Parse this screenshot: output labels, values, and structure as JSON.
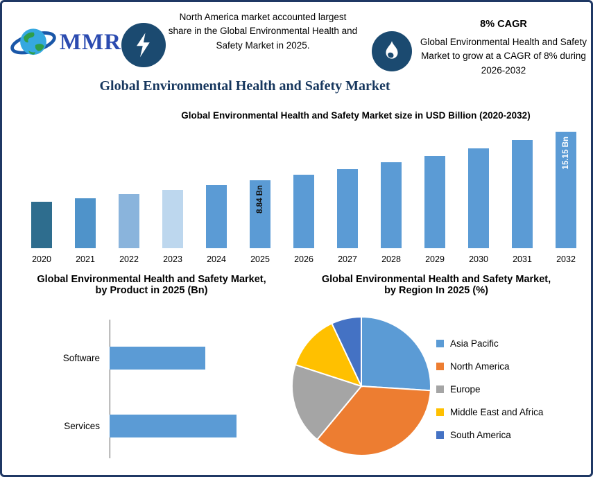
{
  "header": {
    "logo_text": "MMR",
    "highlight_note": "North America market accounted largest share in the Global Environmental Health and Safety Market in 2025.",
    "cagr_heading": "8% CAGR",
    "cagr_note": "Global Environmental Health and Safety Market to grow at a CAGR of 8% during 2026-2032",
    "title": "Global Environmental Health and Safety Market"
  },
  "colors": {
    "border": "#1f3864",
    "badge_circle": "#1b4a70",
    "title_text": "#17375e",
    "bar_primary": "#5b9bd5"
  },
  "chart_data": [
    {
      "type": "bar",
      "title": "Global Environmental Health and Safety Market size in USD Billion (2020-2032)",
      "categories": [
        "2020",
        "2021",
        "2022",
        "2023",
        "2024",
        "2025",
        "2026",
        "2027",
        "2028",
        "2029",
        "2030",
        "2031",
        "2032"
      ],
      "values": [
        6.02,
        6.5,
        7.02,
        7.58,
        8.19,
        8.84,
        9.55,
        10.31,
        11.14,
        12.03,
        12.99,
        14.03,
        15.15
      ],
      "bar_colors": [
        "#2e6d8e",
        "#4f93ca",
        "#8ab4dc",
        "#bdd7ee",
        "#5b9bd5",
        "#5b9bd5",
        "#5b9bd5",
        "#5b9bd5",
        "#5b9bd5",
        "#5b9bd5",
        "#5b9bd5",
        "#5b9bd5",
        "#5b9bd5"
      ],
      "annotations": [
        {
          "index": 5,
          "label": "8.84 Bn",
          "color": "#111111"
        },
        {
          "index": 12,
          "label": "15.15 Bn",
          "color": "#ffffff"
        }
      ],
      "xlabel": "",
      "ylabel": "USD Billion",
      "ylim": [
        0,
        16
      ],
      "grid": false,
      "legend": "none"
    },
    {
      "type": "bar",
      "orientation": "horizontal",
      "title": "Global Environmental Health and Safety Market, by Product in 2025 (Bn)",
      "categories": [
        "Software",
        "Services"
      ],
      "values": [
        3.8,
        5.04
      ],
      "bar_color": "#5b9bd5",
      "grid": false,
      "legend": "none"
    },
    {
      "type": "pie",
      "title": "Global Environmental Health and Safety Market, by Region In 2025 (%)",
      "slices": [
        {
          "label": "Asia Pacific",
          "value": 26,
          "color": "#5b9bd5"
        },
        {
          "label": "North America",
          "value": 35,
          "color": "#ed7d31"
        },
        {
          "label": "Europe",
          "value": 19,
          "color": "#a5a5a5"
        },
        {
          "label": "Middle East and Africa",
          "value": 13,
          "color": "#ffc000"
        },
        {
          "label": "South America",
          "value": 7,
          "color": "#4472c4"
        }
      ],
      "legend_position": "right"
    }
  ]
}
